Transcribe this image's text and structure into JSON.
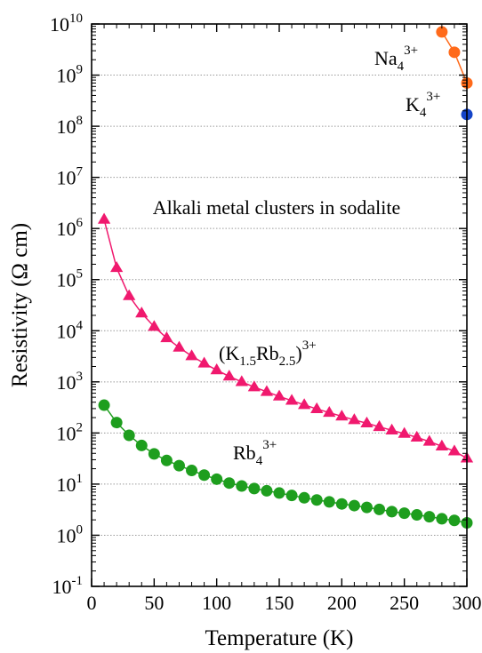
{
  "chart_data": {
    "type": "scatter",
    "title": "",
    "xlabel": "Temperature (K)",
    "ylabel": "Resistivity (Ω cm)",
    "xlim": [
      0,
      300
    ],
    "ylim": [
      0.1,
      10000000000
    ],
    "yscale": "log",
    "grid": "horizontal dotted at each decade",
    "x_ticks": [
      "0",
      "50",
      "100",
      "150",
      "200",
      "250",
      "300"
    ],
    "y_tick_labels": [
      {
        "base": "10",
        "exp": "-1"
      },
      {
        "base": "10",
        "exp": "0"
      },
      {
        "base": "10",
        "exp": "1"
      },
      {
        "base": "10",
        "exp": "2"
      },
      {
        "base": "10",
        "exp": "3"
      },
      {
        "base": "10",
        "exp": "4"
      },
      {
        "base": "10",
        "exp": "5"
      },
      {
        "base": "10",
        "exp": "6"
      },
      {
        "base": "10",
        "exp": "7"
      },
      {
        "base": "10",
        "exp": "8"
      },
      {
        "base": "10",
        "exp": "9"
      },
      {
        "base": "10",
        "exp": "10"
      }
    ],
    "annotation": "Alkali metal clusters in sodalite",
    "series": [
      {
        "key": "na4",
        "label_parts": {
          "base": "Na",
          "sub": "4",
          "sup": "3+"
        },
        "color": "#ff6a1a",
        "marker": "circle",
        "line": true,
        "x": [
          280,
          290,
          300
        ],
        "y": [
          7000000000,
          2800000000,
          700000000
        ]
      },
      {
        "key": "k4",
        "label_parts": {
          "base": "K",
          "sub": "4",
          "sup": "3+"
        },
        "color": "#1444c8",
        "marker": "circle",
        "line": false,
        "x": [
          300
        ],
        "y": [
          170000000
        ]
      },
      {
        "key": "k15rb25",
        "label_parts": {
          "open": "(K",
          "sub1": "1.5",
          "mid": "Rb",
          "sub2": "2.5",
          "close": ")",
          "sup": "3+"
        },
        "color": "#f0196e",
        "marker": "triangle",
        "line": true,
        "x": [
          10,
          20,
          30,
          40,
          50,
          60,
          70,
          80,
          90,
          100,
          110,
          120,
          130,
          140,
          150,
          160,
          170,
          180,
          190,
          200,
          210,
          220,
          230,
          240,
          250,
          260,
          270,
          280,
          290,
          300
        ],
        "y": [
          1500000,
          170000,
          48000,
          22000,
          12000,
          7200,
          4700,
          3200,
          2300,
          1700,
          1280,
          1000,
          790,
          640,
          520,
          430,
          355,
          295,
          250,
          212,
          180,
          155,
          132,
          113,
          97,
          82,
          68,
          55,
          44,
          32
        ]
      },
      {
        "key": "rb4",
        "label_parts": {
          "base": "Rb",
          "sub": "4",
          "sup": "3+"
        },
        "color": "#1e9e1e",
        "marker": "circle",
        "line": true,
        "x": [
          10,
          20,
          30,
          40,
          50,
          60,
          70,
          80,
          90,
          100,
          110,
          120,
          130,
          140,
          150,
          160,
          170,
          180,
          190,
          200,
          210,
          220,
          230,
          240,
          250,
          260,
          270,
          280,
          290,
          300
        ],
        "y": [
          350,
          160,
          90,
          57,
          39,
          29,
          23,
          18.5,
          15,
          12.5,
          10.5,
          9.2,
          8.2,
          7.4,
          6.7,
          6.0,
          5.4,
          4.9,
          4.5,
          4.1,
          3.8,
          3.5,
          3.2,
          2.9,
          2.7,
          2.5,
          2.3,
          2.1,
          1.95,
          1.75
        ]
      }
    ]
  }
}
